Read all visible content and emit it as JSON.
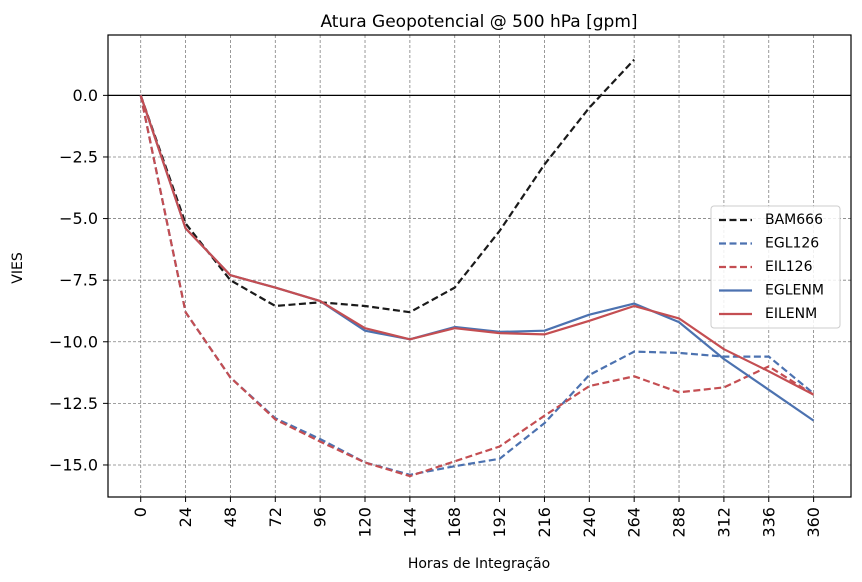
{
  "chart_data": {
    "type": "line",
    "title": "Atura Geopotencial @ 500 hPa [gpm]",
    "xlabel": "Horas de Integração",
    "ylabel": "VIES",
    "x": [
      0,
      24,
      48,
      72,
      96,
      120,
      144,
      168,
      192,
      216,
      240,
      264,
      288,
      312,
      336,
      360
    ],
    "xticks": [
      "0",
      "24",
      "48",
      "72",
      "96",
      "120",
      "144",
      "168",
      "192",
      "216",
      "240",
      "264",
      "288",
      "312",
      "336",
      "360"
    ],
    "yticks": [
      "0.0",
      "−2.5",
      "−5.0",
      "−7.5",
      "−10.0",
      "−12.5",
      "−15.0"
    ],
    "ytick_values": [
      0,
      -2.5,
      -5,
      -7.5,
      -10,
      -12.5,
      -15
    ],
    "xlim": [
      -17.5,
      380
    ],
    "ylim": [
      -16.3,
      2.45
    ],
    "grid": true,
    "hline": 0,
    "legend_position": "center-right",
    "series": [
      {
        "name": "BAM666",
        "color": "#1a1a1a",
        "dash": "dashed",
        "values": [
          0,
          -5.2,
          -7.5,
          -8.55,
          -8.4,
          -8.55,
          -8.8,
          -7.8,
          -5.5,
          -2.8,
          -0.5,
          1.45,
          null,
          null,
          null,
          null
        ]
      },
      {
        "name": "EGL126",
        "color": "#4c72b0",
        "dash": "dashed",
        "values": [
          0,
          -8.8,
          -11.45,
          -13.1,
          -13.95,
          -14.9,
          -15.4,
          -15.05,
          -14.75,
          -13.3,
          -11.35,
          -10.4,
          -10.45,
          -10.6,
          -10.6,
          -12.1
        ]
      },
      {
        "name": "EIL126",
        "color": "#c44e52",
        "dash": "dashed",
        "values": [
          0,
          -8.8,
          -11.45,
          -13.15,
          -14.05,
          -14.9,
          -15.45,
          -14.85,
          -14.25,
          -13.0,
          -11.8,
          -11.4,
          -12.05,
          -11.85,
          -11.0,
          -12.15
        ]
      },
      {
        "name": "EGLENM",
        "color": "#4c72b0",
        "dash": "solid",
        "values": [
          0,
          -5.4,
          -7.3,
          -7.8,
          -8.35,
          -9.55,
          -9.9,
          -9.4,
          -9.6,
          -9.55,
          -8.9,
          -8.45,
          -9.2,
          -10.7,
          -11.95,
          -13.2
        ]
      },
      {
        "name": "EILENM",
        "color": "#c44e52",
        "dash": "solid",
        "values": [
          0,
          -5.4,
          -7.3,
          -7.8,
          -8.35,
          -9.45,
          -9.9,
          -9.45,
          -9.65,
          -9.7,
          -9.15,
          -8.55,
          -9.05,
          -10.3,
          -11.2,
          -12.15
        ]
      }
    ]
  }
}
